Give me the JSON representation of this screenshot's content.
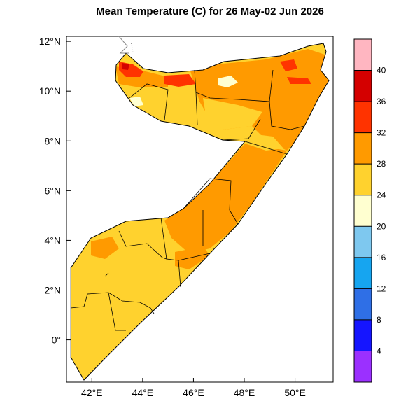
{
  "title": "Mean Temperature (C) for 26 May-02 Jun 2026",
  "map": {
    "lon_range": [
      41,
      51.5
    ],
    "lat_range": [
      -1.7,
      12.2
    ],
    "lon_ticks": [
      {
        "value": 42,
        "label": "42°E"
      },
      {
        "value": 44,
        "label": "44°E"
      },
      {
        "value": 46,
        "label": "46°E"
      },
      {
        "value": 48,
        "label": "48°E"
      },
      {
        "value": 50,
        "label": "50°E"
      }
    ],
    "lat_ticks": [
      {
        "value": 12,
        "label": "12°N"
      },
      {
        "value": 10,
        "label": "10°N"
      },
      {
        "value": 8,
        "label": "8°N"
      },
      {
        "value": 6,
        "label": "6°N"
      },
      {
        "value": 4,
        "label": "4°N"
      },
      {
        "value": 2,
        "label": "2°N"
      },
      {
        "value": 0,
        "label": "0°"
      }
    ]
  },
  "colorbar": {
    "colors": [
      "#9b30ff",
      "#1515ff",
      "#2f6fe6",
      "#16a5f0",
      "#7ec8ef",
      "#ffffd0",
      "#ffd22e",
      "#ff9a00",
      "#ff3300",
      "#d40000",
      "#ffb6c1"
    ],
    "labels": [
      "4",
      "8",
      "12",
      "16",
      "20",
      "24",
      "28",
      "32",
      "36",
      "40"
    ]
  }
}
